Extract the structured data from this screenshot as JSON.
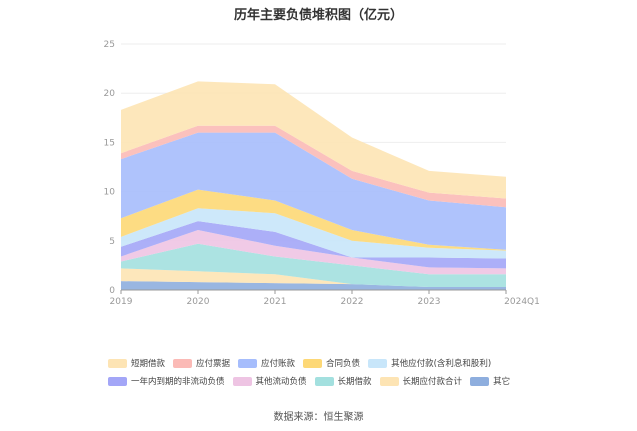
{
  "chart_data": {
    "type": "area",
    "title": "历年主要负债堆积图（亿元）",
    "categories": [
      "2019",
      "2020",
      "2021",
      "2022",
      "2023",
      "2024Q1"
    ],
    "ylim": [
      0,
      25
    ],
    "yticks": [
      "0",
      "5",
      "10",
      "15",
      "20",
      "25"
    ],
    "stacked": true,
    "grid": true,
    "legend_position": "bottom",
    "series": [
      {
        "name": "其它",
        "color": "#8eaede",
        "values": [
          0.9,
          0.8,
          0.7,
          0.6,
          0.3,
          0.3
        ]
      },
      {
        "name": "长期应付款合计",
        "color": "#fde4b4",
        "values": [
          1.3,
          1.1,
          0.9,
          0.0,
          0.0,
          0.0
        ]
      },
      {
        "name": "长期借款",
        "color": "#a3e0df",
        "values": [
          0.7,
          2.8,
          1.8,
          1.9,
          1.3,
          1.3
        ]
      },
      {
        "name": "其他流动负债",
        "color": "#eec4e3",
        "values": [
          0.5,
          1.4,
          1.1,
          0.8,
          0.7,
          0.6
        ]
      },
      {
        "name": "一年内到期的非流动负债",
        "color": "#a3a6f7",
        "values": [
          1.0,
          0.9,
          1.4,
          0.0,
          1.0,
          1.0
        ]
      },
      {
        "name": "其他应付款(含利息和股利)",
        "color": "#c8e6fa",
        "values": [
          1.0,
          1.3,
          1.9,
          1.7,
          1.0,
          0.8
        ]
      },
      {
        "name": "合同负债",
        "color": "#fdd876",
        "values": [
          1.9,
          1.9,
          1.3,
          1.1,
          0.3,
          0.1
        ]
      },
      {
        "name": "应付账款",
        "color": "#a6bdfc",
        "values": [
          6.0,
          5.8,
          6.9,
          5.2,
          4.5,
          4.3
        ]
      },
      {
        "name": "应付票据",
        "color": "#fbbab6",
        "values": [
          0.6,
          0.7,
          0.7,
          0.8,
          0.8,
          0.9
        ]
      },
      {
        "name": "短期借款",
        "color": "#fde4b4",
        "values": [
          4.4,
          4.5,
          4.2,
          3.4,
          2.2,
          2.2
        ]
      }
    ]
  },
  "legend": {
    "row1": [
      "短期借款",
      "应付票据",
      "应付账款",
      "合同负债",
      "其他应付款(含利息和股利)"
    ],
    "row1_colors": [
      "#fde4b4",
      "#fbbab6",
      "#a6bdfc",
      "#fdd876",
      "#c8e6fa"
    ],
    "row2": [
      "一年内到期的非流动负债",
      "其他流动负债",
      "长期借款",
      "长期应付款合计",
      "其它"
    ],
    "row2_colors": [
      "#a3a6f7",
      "#eec4e3",
      "#a3e0df",
      "#fde4b4",
      "#8eaede"
    ]
  },
  "source": "数据来源：恒生聚源"
}
